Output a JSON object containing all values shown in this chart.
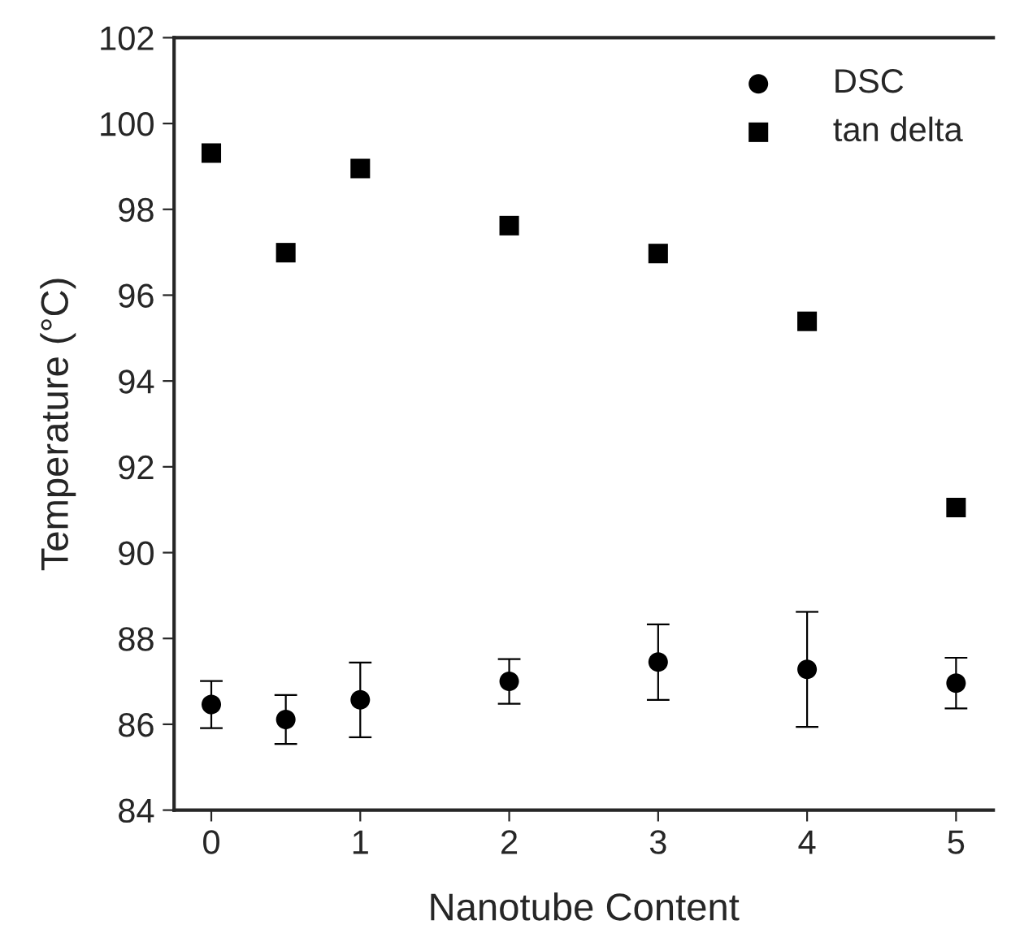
{
  "chart_data": {
    "type": "scatter",
    "xlabel": "Nanotube Content",
    "ylabel": "Temperature (°C)",
    "x": [
      0,
      0.5,
      1,
      2,
      3,
      4,
      5
    ],
    "series": [
      {
        "name": "DSC",
        "color": "#000000",
        "marker": "circle",
        "values": [
          86.46,
          86.11,
          86.57,
          87.0,
          87.45,
          87.28,
          86.96
        ],
        "errors": [
          0.55,
          0.57,
          0.87,
          0.52,
          0.88,
          1.34,
          0.59
        ]
      },
      {
        "name": "tan delta",
        "color": "#000000",
        "marker": "square",
        "values": [
          99.31,
          96.99,
          98.95,
          97.62,
          96.97,
          95.39,
          91.05
        ]
      }
    ],
    "xlim": [
      -0.25,
      5.25
    ],
    "xticks": [
      0,
      1,
      2,
      3,
      4,
      5
    ],
    "ylim": [
      84,
      102
    ],
    "yticks": [
      84,
      86,
      88,
      90,
      92,
      94,
      96,
      98,
      100,
      102
    ],
    "grid": false,
    "legend": "top right"
  }
}
